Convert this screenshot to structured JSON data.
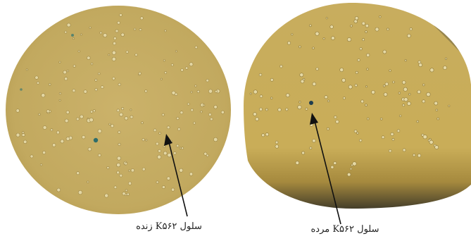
{
  "figure": {
    "left_panel": {
      "caption": "سلول K۵۶۲ زنده",
      "subject": "live-cell",
      "colors": {
        "field": "#c4aa62",
        "field_dark": "#a8914a",
        "cell": "#e3d6a2",
        "stained_cell": "#2e6d6b",
        "arrow": "#111111"
      }
    },
    "right_panel": {
      "caption": "سلول K۵۶۲ مرده",
      "subject": "dead-cell",
      "colors": {
        "field": "#c7ac5c",
        "field_bottom": "#3c3a2c",
        "cell": "#e6d9a4",
        "stained_cell": "#1f3d4e",
        "arrow": "#111111"
      }
    }
  }
}
